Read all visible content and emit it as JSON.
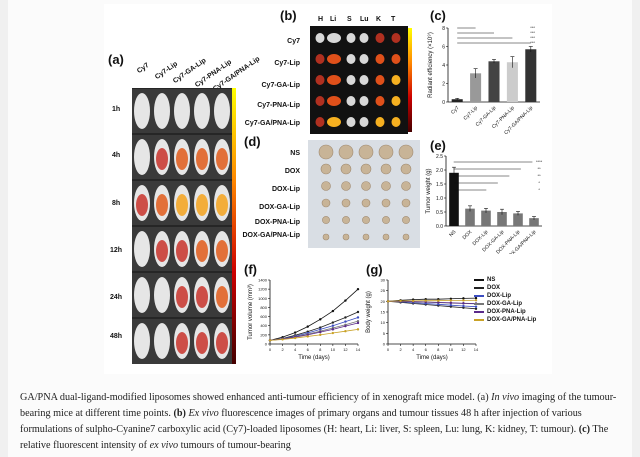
{
  "panels": {
    "a": "(a)",
    "b": "(b)",
    "c": "(c)",
    "d": "(d)",
    "e": "(e)",
    "f": "(f)",
    "g": "(g)"
  },
  "a": {
    "columns": [
      "Cy7",
      "Cy7-Lip",
      "Cy7-GA-Lip",
      "Cy7-PNA-Lip",
      "Cy7-GA/PNA-Lip"
    ],
    "rows": [
      "1h",
      "4h",
      "8h",
      "12h",
      "24h",
      "48h"
    ]
  },
  "b": {
    "organs": [
      "H",
      "Li",
      "S",
      "Lu",
      "K",
      "T"
    ],
    "rows": [
      "Cy7",
      "Cy7-Lip",
      "Cy7-GA-Lip",
      "Cy7-PNA-Lip",
      "Cy7-GA/PNA-Lip"
    ]
  },
  "c": {
    "ylabel": "Radiant efficiency (×10⁹)",
    "yticks": [
      "0",
      "2",
      "4",
      "6",
      "8"
    ],
    "sig": "***"
  },
  "d": {
    "rows": [
      "NS",
      "DOX",
      "DOX-Lip",
      "DOX-GA-Lip",
      "DOX-PNA-Lip",
      "DOX-GA/PNA-Lip"
    ]
  },
  "e": {
    "ylabel": "Tumor weight (g)",
    "yticks": [
      "0.0",
      "0.5",
      "1.0",
      "1.5",
      "2.0",
      "2.5"
    ],
    "sig": [
      "****",
      "**",
      "**",
      "*",
      "*"
    ]
  },
  "f": {
    "xlabel": "Time (days)",
    "ylabel": "Tumor volume (mm³)",
    "xticks": [
      "0",
      "2",
      "4",
      "6",
      "8",
      "10",
      "12",
      "14"
    ],
    "yticks": [
      "0",
      "200",
      "400",
      "600",
      "800",
      "1000",
      "1200",
      "1400"
    ]
  },
  "g": {
    "xlabel": "Time (days)",
    "ylabel": "Body weight (g)",
    "xticks": [
      "0",
      "2",
      "4",
      "6",
      "8",
      "10",
      "12",
      "14"
    ],
    "yticks": [
      "0",
      "5",
      "10",
      "15",
      "20",
      "25",
      "30"
    ]
  },
  "legend": [
    "NS",
    "DOX",
    "DOX-Lip",
    "DOX-GA-Lip",
    "DOX-PNA-Lip",
    "DOX-GA/PNA-Lip"
  ],
  "colors": {
    "NS": "#111111",
    "DOX": "#222222",
    "DOX-Lip": "#3b4cc0",
    "DOX-GA-Lip": "#777777",
    "DOX-PNA-Lip": "#5a2a8a",
    "DOX-GA/PNA-Lip": "#c9a227"
  },
  "chart_data": [
    {
      "type": "bar",
      "panel": "c",
      "categories": [
        "Cy7",
        "Cy7-Lip",
        "Cy7-GA-Lip",
        "Cy7-PNA-Lip",
        "Cy7-GA/PNA-Lip"
      ],
      "values": [
        0.3,
        3.1,
        4.4,
        4.3,
        5.7
      ],
      "errors": [
        0.1,
        0.5,
        0.2,
        0.6,
        0.3
      ],
      "ylabel": "Radiant efficiency (×10⁹)",
      "ylim": [
        0,
        8
      ]
    },
    {
      "type": "bar",
      "panel": "e",
      "categories": [
        "NS",
        "DOX",
        "DOX-Lip",
        "DOX-GA-Lip",
        "DOX-PNA-Lip",
        "DOX-GA/PNA-Lip"
      ],
      "values": [
        1.9,
        0.62,
        0.55,
        0.5,
        0.45,
        0.28
      ],
      "errors": [
        0.2,
        0.1,
        0.08,
        0.1,
        0.07,
        0.06
      ],
      "ylabel": "Tumor weight (g)",
      "ylim": [
        0,
        2.5
      ]
    },
    {
      "type": "line",
      "panel": "f",
      "x": [
        0,
        2,
        4,
        6,
        8,
        10,
        12,
        14
      ],
      "series": [
        {
          "name": "NS",
          "values": [
            80,
            150,
            250,
            380,
            540,
            720,
            950,
            1200
          ]
        },
        {
          "name": "DOX",
          "values": [
            80,
            120,
            190,
            270,
            360,
            470,
            580,
            700
          ]
        },
        {
          "name": "DOX-Lip",
          "values": [
            80,
            115,
            170,
            240,
            320,
            400,
            490,
            580
          ]
        },
        {
          "name": "DOX-GA-Lip",
          "values": [
            80,
            110,
            160,
            215,
            280,
            350,
            420,
            500
          ]
        },
        {
          "name": "DOX-PNA-Lip",
          "values": [
            80,
            108,
            150,
            200,
            260,
            320,
            390,
            460
          ]
        },
        {
          "name": "DOX-GA/PNA-Lip",
          "values": [
            80,
            100,
            130,
            165,
            200,
            240,
            280,
            320
          ]
        }
      ],
      "xlabel": "Time (days)",
      "ylabel": "Tumor volume (mm³)",
      "ylim": [
        0,
        1400
      ]
    },
    {
      "type": "line",
      "panel": "g",
      "x": [
        0,
        2,
        4,
        6,
        8,
        10,
        12,
        14
      ],
      "series": [
        {
          "name": "NS",
          "values": [
            20,
            20.5,
            20.8,
            21,
            21,
            21.2,
            21.4,
            21.5
          ]
        },
        {
          "name": "DOX",
          "values": [
            20,
            19.5,
            19,
            18.5,
            18,
            17.5,
            17,
            16.5
          ]
        },
        {
          "name": "DOX-Lip",
          "values": [
            20,
            19.8,
            19.4,
            19,
            18.6,
            18.2,
            17.8,
            17.5
          ]
        },
        {
          "name": "DOX-GA-Lip",
          "values": [
            20,
            20,
            19.8,
            19.6,
            19.4,
            19.2,
            19,
            18.8
          ]
        },
        {
          "name": "DOX-PNA-Lip",
          "values": [
            20,
            20,
            19.9,
            19.7,
            19.5,
            19.3,
            19.1,
            19
          ]
        },
        {
          "name": "DOX-GA/PNA-Lip",
          "values": [
            20,
            20.2,
            20.2,
            20.3,
            20.3,
            20.4,
            20.4,
            20.5
          ]
        }
      ],
      "xlabel": "Time (days)",
      "ylabel": "Body weight (g)",
      "ylim": [
        0,
        30
      ]
    }
  ],
  "caption": {
    "p1": "GA/PNA dual-ligand-modified liposomes showed enhanced anti-tumour efficiency of in xenograft mice model. (a) ",
    "p1i": "In vivo",
    "p2": " imaging of the tumour-bearing mice at different time points. ",
    "p2b": "(b)",
    "p3i": " Ex vivo",
    "p4": " fluorescence images of primary organs and tumour tissues 48 h after injection of various formulations of sulpho-Cyanine7 carboxylic acid (Cy7)-loaded liposomes (H: heart, Li: liver, S: spleen, Lu: lung, K: kidney, T: tumour). ",
    "p4b": "(c)",
    "p5": " The relative fluorescent intensity of ",
    "p5i": "ex vivo",
    "p6": " tumours of tumour-bearing"
  }
}
